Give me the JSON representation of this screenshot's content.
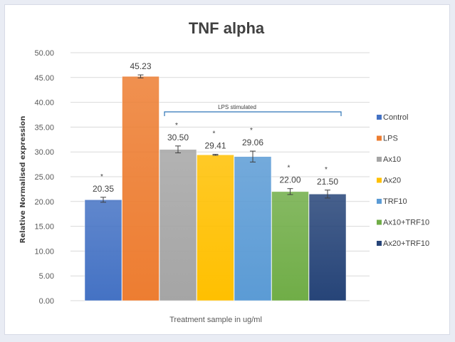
{
  "chart_data": {
    "type": "bar",
    "title": "TNF alpha",
    "xlabel": "Treatment  sample in ug/ml",
    "ylabel": "Relative Normalised expression",
    "ylim": [
      0,
      50
    ],
    "yticks": [
      "0.00",
      "5.00",
      "10.00",
      "15.00",
      "20.00",
      "25.00",
      "30.00",
      "35.00",
      "40.00",
      "45.00",
      "50.00"
    ],
    "categories": [
      "Control",
      "LPS",
      "Ax10",
      "Ax20",
      "TRF10",
      "Ax10+TRF10",
      "Ax20+TRF10"
    ],
    "values": [
      20.35,
      45.23,
      30.5,
      29.41,
      29.06,
      22.0,
      21.5
    ],
    "value_labels": [
      "20.35",
      "45.23",
      "30.50",
      "29.41",
      "29.06",
      "22.00",
      "21.50"
    ],
    "errors": [
      0.5,
      0.3,
      0.7,
      0.1,
      1.1,
      0.6,
      0.8
    ],
    "significance": [
      "*",
      "",
      "*",
      "*",
      "*",
      "*",
      "*"
    ],
    "colors": [
      "#4472c4",
      "#ed7d31",
      "#a5a5a5",
      "#ffc000",
      "#5b9bd5",
      "#70ad47",
      "#264478"
    ],
    "bracket_label": "LPS stimulated",
    "legend_position": "right",
    "grid": true
  }
}
